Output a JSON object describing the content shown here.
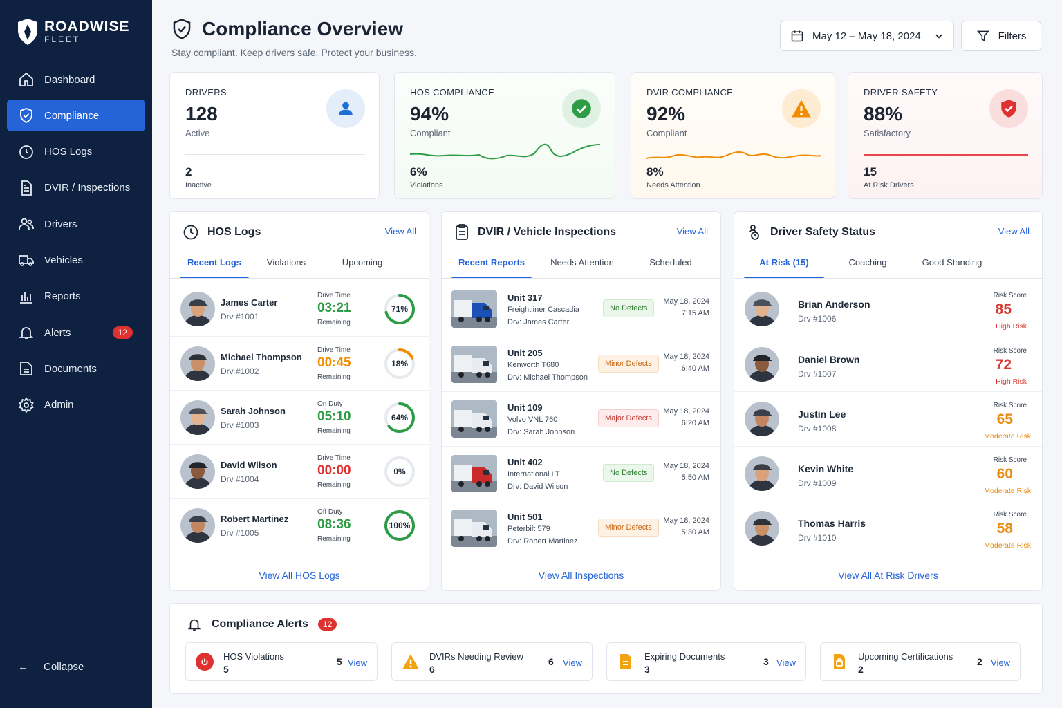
{
  "brand": {
    "name": "ROADWISE",
    "sub": "FLEET"
  },
  "nav": [
    {
      "label": "Dashboard",
      "icon": "home-icon"
    },
    {
      "label": "Compliance",
      "icon": "shield-check-icon",
      "active": true
    },
    {
      "label": "HOS Logs",
      "icon": "clock-icon"
    },
    {
      "label": "DVIR / Inspections",
      "icon": "document-icon"
    },
    {
      "label": "Drivers",
      "icon": "users-icon"
    },
    {
      "label": "Vehicles",
      "icon": "truck-icon"
    },
    {
      "label": "Reports",
      "icon": "bar-chart-icon"
    },
    {
      "label": "Alerts",
      "icon": "bell-icon",
      "badge": "12"
    },
    {
      "label": "Documents",
      "icon": "folder-icon"
    },
    {
      "label": "Admin",
      "icon": "gear-icon"
    }
  ],
  "collapse_label": "Collapse",
  "header": {
    "title": "Compliance Overview",
    "subtitle": "Stay compliant. Keep drivers safe. Protect your business.",
    "date_range": "May 12 – May 18, 2024",
    "filters_label": "Filters"
  },
  "kpis": [
    {
      "label": "DRIVERS",
      "value": "128",
      "status": "Active",
      "sub_value": "2",
      "sub_label": "Inactive",
      "color": "#1f6fd6"
    },
    {
      "label": "HOS COMPLIANCE",
      "value": "94%",
      "status": "Compliant",
      "sub_value": "6%",
      "sub_label": "Violations",
      "color": "#2e9b45"
    },
    {
      "label": "DVIR COMPLIANCE",
      "value": "92%",
      "status": "Compliant",
      "sub_value": "8%",
      "sub_label": "Needs Attention",
      "color": "#f08c00"
    },
    {
      "label": "DRIVER SAFETY",
      "value": "88%",
      "status": "Satisfactory",
      "sub_value": "15",
      "sub_label": "At Risk Drivers",
      "color": "#e03131"
    }
  ],
  "hos": {
    "title": "HOS Logs",
    "view_all": "View All",
    "tabs": [
      "Recent Logs",
      "Violations",
      "Upcoming"
    ],
    "rows": [
      {
        "name": "James Carter",
        "id": "Drv #1001",
        "status": "Drive Time",
        "time": "03:21",
        "remaining": "Remaining",
        "pct": 71,
        "pct_label": "71%",
        "color": "#2e9b45"
      },
      {
        "name": "Michael Thompson",
        "id": "Drv #1002",
        "status": "Drive Time",
        "time": "00:45",
        "remaining": "Remaining",
        "pct": 18,
        "pct_label": "18%",
        "color": "#f08c00"
      },
      {
        "name": "Sarah Johnson",
        "id": "Drv #1003",
        "status": "On Duty",
        "time": "05:10",
        "remaining": "Remaining",
        "pct": 64,
        "pct_label": "64%",
        "color": "#2e9b45"
      },
      {
        "name": "David Wilson",
        "id": "Drv #1004",
        "status": "Drive Time",
        "time": "00:00",
        "remaining": "Remaining",
        "pct": 0,
        "pct_label": "0%",
        "color": "#e03131"
      },
      {
        "name": "Robert Martinez",
        "id": "Drv #1005",
        "status": "Off Duty",
        "time": "08:36",
        "remaining": "Remaining",
        "pct": 100,
        "pct_label": "100%",
        "color": "#2e9b45"
      }
    ],
    "footer": "View All HOS Logs"
  },
  "dvir": {
    "title": "DVIR / Vehicle Inspections",
    "view_all": "View All",
    "tabs": [
      "Recent Reports",
      "Needs Attention",
      "Scheduled"
    ],
    "rows": [
      {
        "unit": "Unit 317",
        "model": "Freightliner Cascadia",
        "driver": "Drv: James Carter",
        "status": "No Defects",
        "kind": "ok",
        "date": "May 18, 2024",
        "time": "7:15 AM",
        "truck_color": "#1c4fb8"
      },
      {
        "unit": "Unit 205",
        "model": "Kenworth T680",
        "driver": "Drv: Michael Thompson",
        "status": "Minor Defects",
        "kind": "minor",
        "date": "May 18, 2024",
        "time": "6:40 AM",
        "truck_color": "#e8ecf1"
      },
      {
        "unit": "Unit 109",
        "model": "Volvo VNL 760",
        "driver": "Drv: Sarah Johnson",
        "status": "Major Defects",
        "kind": "major",
        "date": "May 18, 2024",
        "time": "6:20 AM",
        "truck_color": "#e8ecf1"
      },
      {
        "unit": "Unit 402",
        "model": "International LT",
        "driver": "Drv: David Wilson",
        "status": "No Defects",
        "kind": "ok",
        "date": "May 18, 2024",
        "time": "5:50 AM",
        "truck_color": "#c92a2a"
      },
      {
        "unit": "Unit 501",
        "model": "Peterbilt 579",
        "driver": "Drv: Robert Martinez",
        "status": "Minor Defects",
        "kind": "minor",
        "date": "May 18, 2024",
        "time": "5:30 AM",
        "truck_color": "#e8ecf1"
      }
    ],
    "footer": "View All Inspections"
  },
  "safety": {
    "title": "Driver Safety Status",
    "view_all": "View All",
    "tabs": [
      "At Risk (15)",
      "Coaching",
      "Good Standing"
    ],
    "rows": [
      {
        "name": "Brian Anderson",
        "id": "Drv #1006",
        "score_label": "Risk Score",
        "score": "85",
        "risk": "High Risk",
        "color": "#d63a34"
      },
      {
        "name": "Daniel Brown",
        "id": "Drv #1007",
        "score_label": "Risk Score",
        "score": "72",
        "risk": "High Risk",
        "color": "#d63a34"
      },
      {
        "name": "Justin Lee",
        "id": "Drv #1008",
        "score_label": "Risk Score",
        "score": "65",
        "risk": "Moderate Risk",
        "color": "#ea8a0f"
      },
      {
        "name": "Kevin White",
        "id": "Drv #1009",
        "score_label": "Risk Score",
        "score": "60",
        "risk": "Moderate Risk",
        "color": "#ea8a0f"
      },
      {
        "name": "Thomas Harris",
        "id": "Drv #1010",
        "score_label": "Risk Score",
        "score": "58",
        "risk": "Moderate Risk",
        "color": "#ea8a0f"
      }
    ],
    "footer": "View All At Risk Drivers"
  },
  "alerts": {
    "title": "Compliance Alerts",
    "badge": "12",
    "items": [
      {
        "title": "HOS Violations",
        "count": "5",
        "number": "5",
        "view": "View",
        "icon": "stop-icon",
        "color": "#e03131"
      },
      {
        "title": "DVIRs Needing Review",
        "count": "6",
        "number": "6",
        "view": "View",
        "icon": "warning-icon",
        "color": "#f2a30f"
      },
      {
        "title": "Expiring Documents",
        "count": "3",
        "number": "3",
        "view": "View",
        "icon": "document-icon",
        "color": "#f2a30f"
      },
      {
        "title": "Upcoming Certifications",
        "count": "2",
        "number": "2",
        "view": "View",
        "icon": "certificate-icon",
        "color": "#f2a30f"
      }
    ]
  }
}
